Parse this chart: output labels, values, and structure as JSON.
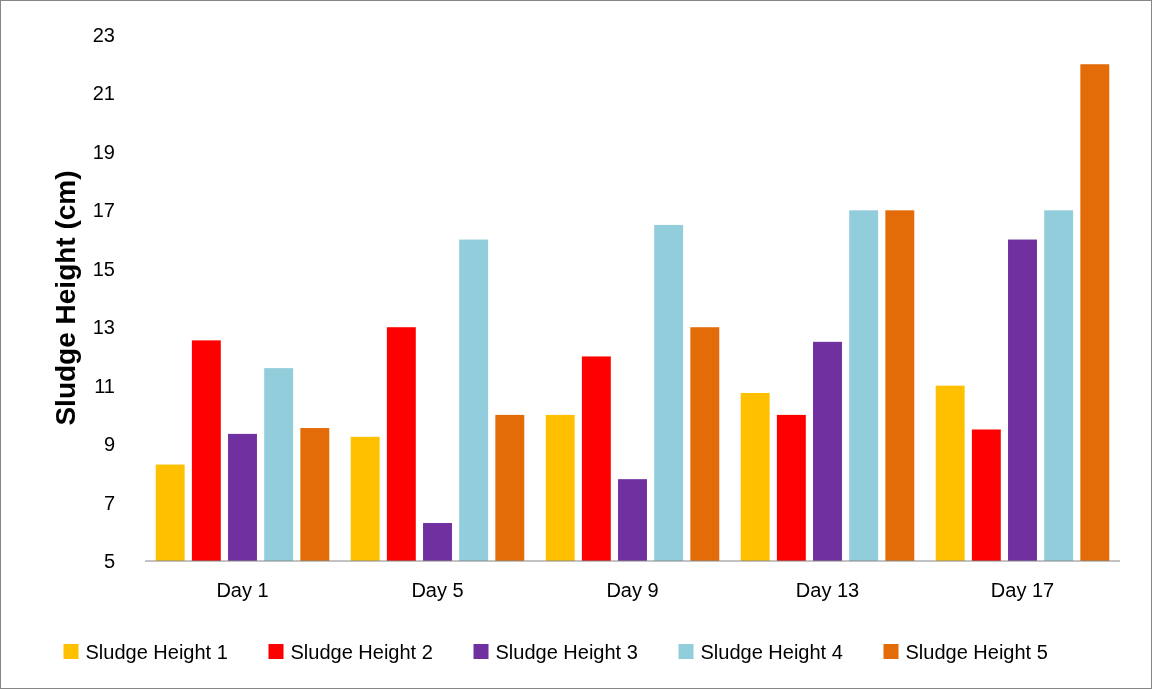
{
  "chart_data": {
    "type": "bar",
    "ylabel": "Sludge Height (cm)",
    "categories": [
      "Day 1",
      "Day 5",
      "Day 9",
      "Day 13",
      "Day 17"
    ],
    "series": [
      {
        "name": "Sludge Height 1",
        "color": "#ffc000",
        "values": [
          8.3,
          9.25,
          10,
          10.75,
          11
        ]
      },
      {
        "name": "Sludge Height 2",
        "color": "#ff0000",
        "values": [
          12.55,
          13,
          12,
          10,
          9.5
        ]
      },
      {
        "name": "Sludge Height 3",
        "color": "#7030a0",
        "values": [
          9.35,
          6.3,
          7.8,
          12.5,
          16
        ]
      },
      {
        "name": "Sludge Height 4",
        "color": "#92cddc",
        "values": [
          11.6,
          16,
          16.5,
          17,
          17
        ]
      },
      {
        "name": "Sludge Height 5",
        "color": "#e36c09",
        "values": [
          9.55,
          10,
          13,
          17,
          22
        ]
      }
    ],
    "ylim": [
      5,
      23
    ],
    "yticks": [
      5,
      7,
      9,
      11,
      13,
      15,
      17,
      19,
      21,
      23
    ],
    "grid": false,
    "legend": "bottom"
  }
}
